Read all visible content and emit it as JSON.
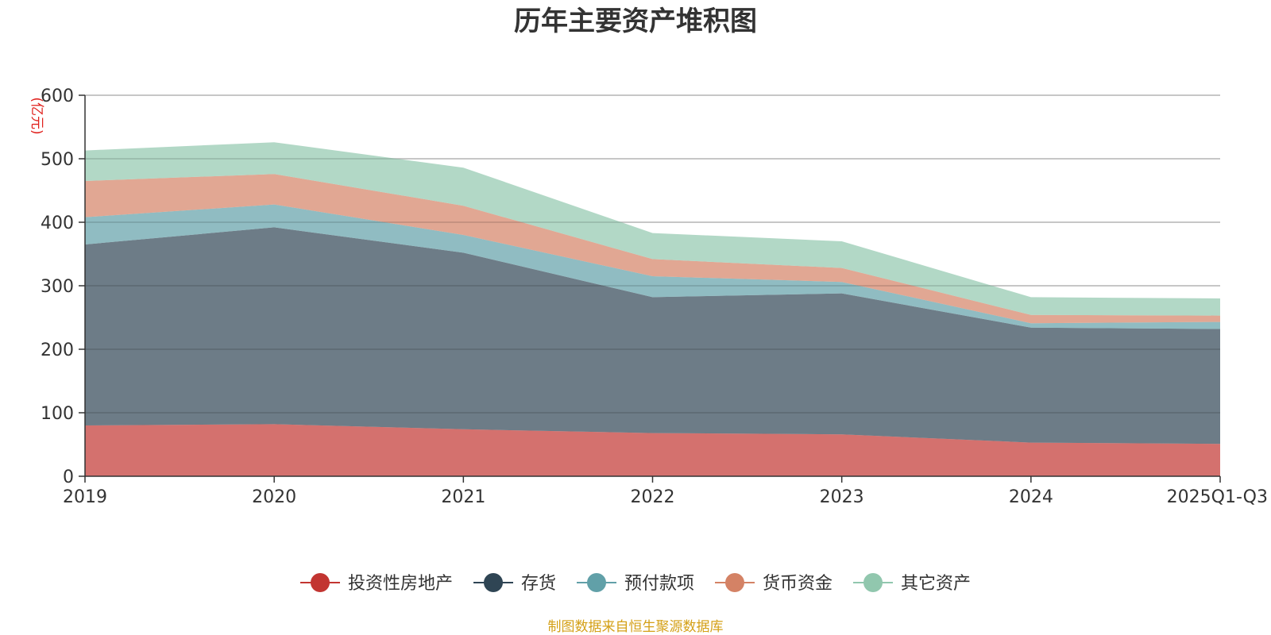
{
  "chart_data": {
    "type": "area",
    "stacked": true,
    "title": "历年主要资产堆积图",
    "ylabel": "(亿元)",
    "xlabel": "",
    "ylim": [
      0,
      600
    ],
    "yticks": [
      0,
      100,
      200,
      300,
      400,
      500,
      600
    ],
    "grid": true,
    "legend_position": "bottom",
    "categories": [
      "2019",
      "2020",
      "2021",
      "2022",
      "2023",
      "2024",
      "2025Q1-Q3"
    ],
    "series": [
      {
        "name": "投资性房地产",
        "color": "#c23531",
        "values": [
          80,
          82,
          74,
          68,
          66,
          53,
          51
        ]
      },
      {
        "name": "存货",
        "color": "#2f4554",
        "values": [
          285,
          310,
          278,
          214,
          222,
          181,
          181
        ]
      },
      {
        "name": "预付款项",
        "color": "#61a0a8",
        "values": [
          43,
          36,
          28,
          33,
          18,
          7,
          11
        ]
      },
      {
        "name": "货币资金",
        "color": "#d48265",
        "values": [
          57,
          48,
          46,
          27,
          22,
          13,
          10
        ]
      },
      {
        "name": "其它资产",
        "color": "#91c7ae",
        "values": [
          48,
          50,
          60,
          41,
          42,
          28,
          27
        ]
      }
    ],
    "source": "制图数据来自恒生聚源数据库"
  }
}
